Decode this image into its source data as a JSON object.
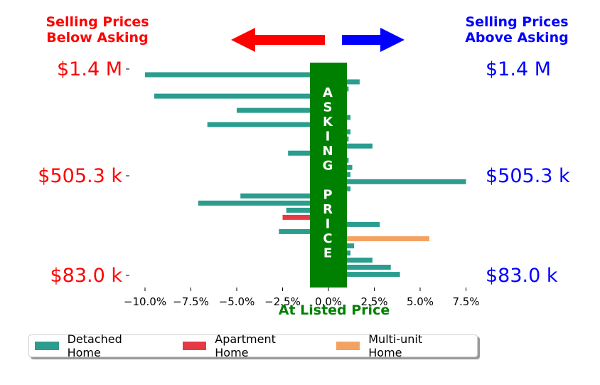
{
  "headers": {
    "below": [
      "Selling Prices",
      "Below Asking"
    ],
    "above": [
      "Selling Prices",
      "Above Asking"
    ]
  },
  "price_labels": {
    "top": "$1.4 M",
    "middle": "$505.3 k",
    "bottom": "$83.0 k"
  },
  "asking_price_text": [
    "A",
    "S",
    "K",
    "I",
    "N",
    "G",
    "",
    "P",
    "R",
    "I",
    "C",
    "E"
  ],
  "colors": {
    "below_arrow": "#ff0000",
    "above_arrow": "#0000ff",
    "asking_band": "#008000",
    "Detached Home": "#2a9d8f",
    "Apartment Home": "#e63946",
    "Multi-unit Home": "#f4a261"
  },
  "chart_data": {
    "type": "bar",
    "orientation": "horizontal",
    "xlabel": "At Listed Price",
    "x_ticks": [
      "−10.0%",
      "−7.5%",
      "−5.0%",
      "−2.5%",
      "0.0%",
      "2.5%",
      "5.0%",
      "7.5%"
    ],
    "x_tick_values": [
      -10,
      -7.5,
      -5,
      -2.5,
      0,
      2.5,
      5,
      7.5
    ],
    "xlim": [
      -11.2,
      8.3
    ],
    "legend": [
      "Detached Home",
      "Apartment Home",
      "Multi-unit Home"
    ],
    "legend_position": "bottom",
    "bars": [
      {
        "value": -10.0,
        "type": "Detached Home"
      },
      {
        "value": 1.7,
        "type": "Detached Home"
      },
      {
        "value": 1.1,
        "type": "Detached Home"
      },
      {
        "value": -9.5,
        "type": "Detached Home"
      },
      {
        "value": -0.5,
        "type": "Detached Home"
      },
      {
        "value": -5.0,
        "type": "Detached Home"
      },
      {
        "value": 1.2,
        "type": "Detached Home"
      },
      {
        "value": -6.6,
        "type": "Detached Home"
      },
      {
        "value": 1.2,
        "type": "Detached Home"
      },
      {
        "value": 1.1,
        "type": "Detached Home"
      },
      {
        "value": 2.4,
        "type": "Detached Home"
      },
      {
        "value": -2.2,
        "type": "Detached Home"
      },
      {
        "value": 1.1,
        "type": "Detached Home"
      },
      {
        "value": 1.3,
        "type": "Detached Home"
      },
      {
        "value": 1.2,
        "type": "Detached Home"
      },
      {
        "value": 7.5,
        "type": "Detached Home"
      },
      {
        "value": 1.2,
        "type": "Detached Home"
      },
      {
        "value": -4.8,
        "type": "Detached Home"
      },
      {
        "value": -7.1,
        "type": "Detached Home"
      },
      {
        "value": -2.3,
        "type": "Detached Home"
      },
      {
        "value": -2.5,
        "type": "Apartment Home"
      },
      {
        "value": 2.8,
        "type": "Detached Home"
      },
      {
        "value": -2.7,
        "type": "Detached Home"
      },
      {
        "value": 5.5,
        "type": "Multi-unit Home"
      },
      {
        "value": 1.4,
        "type": "Detached Home"
      },
      {
        "value": 1.2,
        "type": "Detached Home"
      },
      {
        "value": 2.4,
        "type": "Detached Home"
      },
      {
        "value": 3.4,
        "type": "Detached Home"
      },
      {
        "value": 3.9,
        "type": "Detached Home"
      }
    ]
  }
}
